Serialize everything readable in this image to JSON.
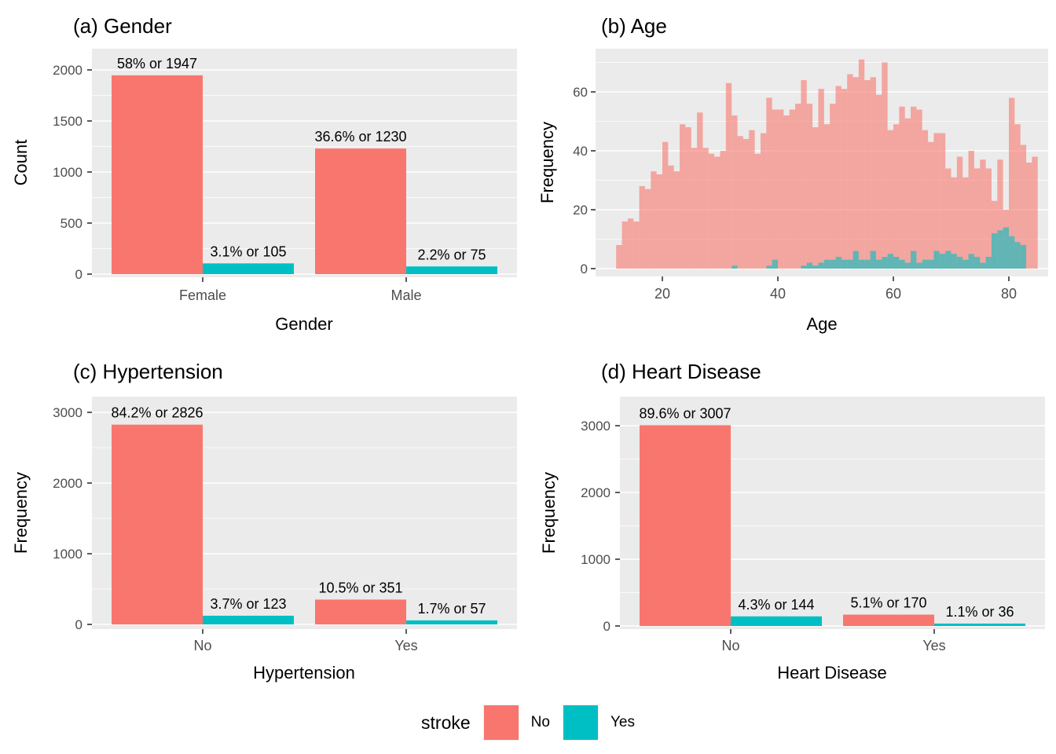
{
  "colors": {
    "stroke_no": "#F8766D",
    "stroke_yes": "#00BFC4",
    "panel_background": "#EBEBEB",
    "gridline": "#FFFFFF",
    "tick_text": "#4D4D4D",
    "tick_mark": "#333333",
    "label_text": "#000000",
    "hist_opacity": 0.6
  },
  "legend": {
    "title": "stroke",
    "items": [
      {
        "label": "No",
        "color": "#F8766D"
      },
      {
        "label": "Yes",
        "color": "#00BFC4"
      }
    ]
  },
  "chart_data": [
    {
      "type": "bar",
      "title": "(a) Gender",
      "xlabel": "Gender",
      "ylabel": "Count",
      "categories": [
        "Female",
        "Male"
      ],
      "series": [
        {
          "name": "No",
          "color": "#F8766D",
          "values": [
            1947,
            1230
          ],
          "labels": [
            "58% or 1947",
            "36.6% or 1230"
          ]
        },
        {
          "name": "Yes",
          "color": "#00BFC4",
          "values": [
            105,
            75
          ],
          "labels": [
            "3.1% or 105",
            "2.2% or 75"
          ]
        }
      ],
      "yticks": [
        0,
        500,
        1000,
        1500,
        2000
      ],
      "yminor": [
        250,
        750,
        1250,
        1750
      ],
      "ylim": [
        0,
        2208
      ],
      "grid": true,
      "legend_position": "bottom-shared"
    },
    {
      "type": "histogram",
      "title": "(b) Age",
      "xlabel": "Age",
      "ylabel": "Frequency",
      "bin_start": 12,
      "bin_width": 1,
      "xticks": [
        20,
        40,
        60,
        80
      ],
      "xminor": [
        10,
        30,
        50,
        70
      ],
      "yticks": [
        0,
        20,
        40,
        60
      ],
      "yminor": [
        10,
        30,
        50,
        70
      ],
      "xlim": [
        8.4,
        87
      ],
      "ylim": [
        0,
        74
      ],
      "grid": true,
      "series": [
        {
          "name": "No",
          "color": "#F8766D",
          "opacity": 0.6,
          "values": [
            8,
            16,
            17,
            16,
            28,
            27,
            33,
            32,
            43,
            35,
            33,
            49,
            48,
            41,
            53,
            41,
            39,
            38,
            40,
            63,
            52,
            45,
            44,
            47,
            39,
            46,
            58,
            54,
            54,
            52,
            54,
            56,
            64,
            56,
            48,
            61,
            49,
            56,
            62,
            61,
            66,
            65,
            71,
            64,
            65,
            59,
            70,
            47,
            49,
            55,
            51,
            55,
            54,
            47,
            43,
            46,
            46,
            34,
            31,
            38,
            31,
            40,
            34,
            37,
            34,
            23,
            37,
            20,
            58,
            49,
            42,
            36,
            38
          ]
        },
        {
          "name": "Yes",
          "color": "#00BFC4",
          "opacity": 0.6,
          "values": [
            0,
            0,
            0,
            0,
            0,
            0,
            0,
            0,
            0,
            0,
            0,
            0,
            0,
            0,
            0,
            0,
            0,
            0,
            0,
            0,
            1,
            0,
            0,
            0,
            0,
            0,
            1,
            3,
            0,
            0,
            0,
            0,
            1,
            2,
            1,
            2,
            3,
            3,
            4,
            3,
            3,
            6,
            3,
            3,
            6,
            3,
            4,
            5,
            4,
            3,
            2,
            6,
            2,
            3,
            3,
            6,
            5,
            6,
            5,
            4,
            3,
            5,
            4,
            2,
            4,
            12,
            13,
            14,
            11,
            9,
            8
          ]
        }
      ]
    },
    {
      "type": "bar",
      "title": "(c) Hypertension",
      "xlabel": "Hypertension",
      "ylabel": "Frequency",
      "categories": [
        "No",
        "Yes"
      ],
      "series": [
        {
          "name": "No",
          "color": "#F8766D",
          "values": [
            2826,
            351
          ],
          "labels": [
            "84.2% or 2826",
            "10.5% or 351"
          ]
        },
        {
          "name": "Yes",
          "color": "#00BFC4",
          "values": [
            123,
            57
          ],
          "labels": [
            "3.7% or 123",
            "1.7% or 57"
          ]
        }
      ],
      "yticks": [
        0,
        1000,
        2000,
        3000
      ],
      "yminor": [
        500,
        1500,
        2500
      ],
      "ylim": [
        0,
        3222
      ],
      "grid": true,
      "legend_position": "bottom-shared"
    },
    {
      "type": "bar",
      "title": "(d) Heart Disease",
      "xlabel": "Heart Disease",
      "ylabel": "Frequency",
      "categories": [
        "No",
        "Yes"
      ],
      "series": [
        {
          "name": "No",
          "color": "#F8766D",
          "values": [
            3007,
            170
          ],
          "labels": [
            "89.6% or 3007",
            "5.1% or 170"
          ]
        },
        {
          "name": "Yes",
          "color": "#00BFC4",
          "values": [
            144,
            36
          ],
          "labels": [
            "4.3% or 144",
            "1.1% or 36"
          ]
        }
      ],
      "yticks": [
        0,
        1000,
        2000,
        3000
      ],
      "yminor": [
        500,
        1500,
        2500
      ],
      "ylim": [
        0,
        3435
      ],
      "grid": true,
      "legend_position": "bottom-shared"
    }
  ]
}
